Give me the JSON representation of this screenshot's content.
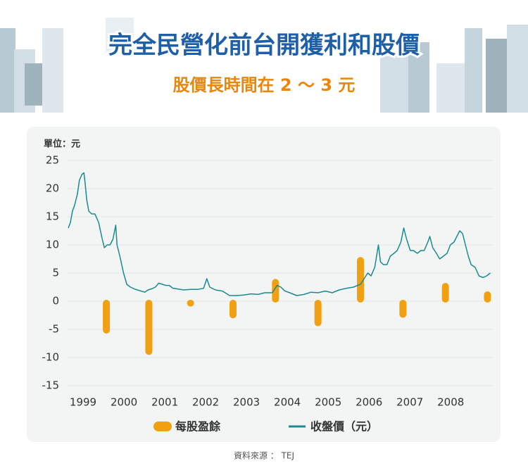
{
  "chart_data": {
    "type": "combo",
    "title": "完全民營化前台開獲利和股價",
    "subtitle": "股價長時間在 2 ～ 3 元",
    "y_unit_label": "單位：元",
    "xlim": [
      1998.5,
      2009.03
    ],
    "xticks": [
      1999,
      2000,
      2001,
      2002,
      2003,
      2004,
      2005,
      2006,
      2007,
      2008
    ],
    "ylim": [
      -15,
      25
    ],
    "yticks": [
      -15,
      -10,
      -5,
      0,
      5,
      10,
      15,
      20,
      25
    ],
    "grid": true,
    "legend": "bottom",
    "series": [
      {
        "name": "每股盈餘",
        "type": "bar",
        "color": "#f0a010",
        "x": [
          1999.57,
          2000.61,
          2001.63,
          2002.67,
          2003.71,
          2004.75,
          2005.79,
          2006.83,
          2007.87,
          2008.9
        ],
        "values": [
          -5.5,
          -9.3,
          -0.7,
          -2.8,
          3.7,
          -4.2,
          7.6,
          -2.7,
          3.0,
          1.5
        ]
      },
      {
        "name": "收盤價（元）",
        "type": "line",
        "color": "#1a8a8f",
        "x": [
          1998.64,
          1998.69,
          1998.74,
          1998.79,
          1998.86,
          1998.91,
          1998.97,
          1999.02,
          1999.05,
          1999.09,
          1999.14,
          1999.21,
          1999.29,
          1999.38,
          1999.47,
          1999.52,
          1999.59,
          1999.66,
          1999.73,
          1999.8,
          1999.83,
          1999.9,
          1999.99,
          2000.07,
          2000.16,
          2000.25,
          2000.33,
          2000.42,
          2000.51,
          2000.59,
          2000.68,
          2000.77,
          2000.85,
          2000.94,
          2001.03,
          2001.11,
          2001.2,
          2001.29,
          2001.46,
          2001.63,
          2001.81,
          2001.95,
          2002.03,
          2002.1,
          2002.24,
          2002.41,
          2002.59,
          2002.76,
          2002.93,
          2003.11,
          2003.28,
          2003.45,
          2003.63,
          2003.75,
          2003.84,
          2003.94,
          2004.06,
          2004.23,
          2004.41,
          2004.58,
          2004.75,
          2004.93,
          2005.1,
          2005.27,
          2005.45,
          2005.62,
          2005.79,
          2005.88,
          2005.97,
          2006.05,
          2006.14,
          2006.23,
          2006.28,
          2006.35,
          2006.44,
          2006.52,
          2006.61,
          2006.69,
          2006.78,
          2006.85,
          2006.92,
          2007.01,
          2007.09,
          2007.18,
          2007.27,
          2007.35,
          2007.44,
          2007.49,
          2007.56,
          2007.65,
          2007.73,
          2007.82,
          2007.91,
          2007.99,
          2008.08,
          2008.15,
          2008.22,
          2008.29,
          2008.36,
          2008.43,
          2008.5,
          2008.6,
          2008.69,
          2008.79,
          2008.88,
          2008.97
        ],
        "values": [
          13,
          14,
          16,
          17,
          19,
          21.5,
          22.5,
          22.8,
          21,
          18,
          16,
          15.5,
          15.5,
          14,
          11,
          9.5,
          10,
          10,
          11,
          13.5,
          10,
          8,
          5,
          3,
          2.5,
          2.2,
          2,
          1.8,
          1.6,
          2,
          2.2,
          2.5,
          3.2,
          3,
          2.8,
          2.8,
          2.3,
          2.2,
          2,
          2.1,
          2.1,
          2.3,
          4,
          2.5,
          2,
          1.8,
          1,
          1,
          1.1,
          1.3,
          1.2,
          1.5,
          1.5,
          2.8,
          2.5,
          1.8,
          1.5,
          1,
          1.2,
          1.6,
          1.5,
          1.8,
          1.5,
          2,
          2.3,
          2.5,
          3,
          4,
          5,
          4.5,
          6,
          10,
          7,
          6.5,
          6.5,
          8,
          8.5,
          9,
          10.5,
          13,
          11,
          9,
          9,
          8.5,
          9,
          9,
          10.5,
          11.5,
          9.5,
          8.5,
          7.5,
          8,
          8.5,
          10,
          10.5,
          11.5,
          12.5,
          12,
          10,
          8,
          6.5,
          6,
          4.5,
          4.2,
          4.5,
          5
        ]
      }
    ]
  },
  "source": "資料來源 ： TEJ"
}
